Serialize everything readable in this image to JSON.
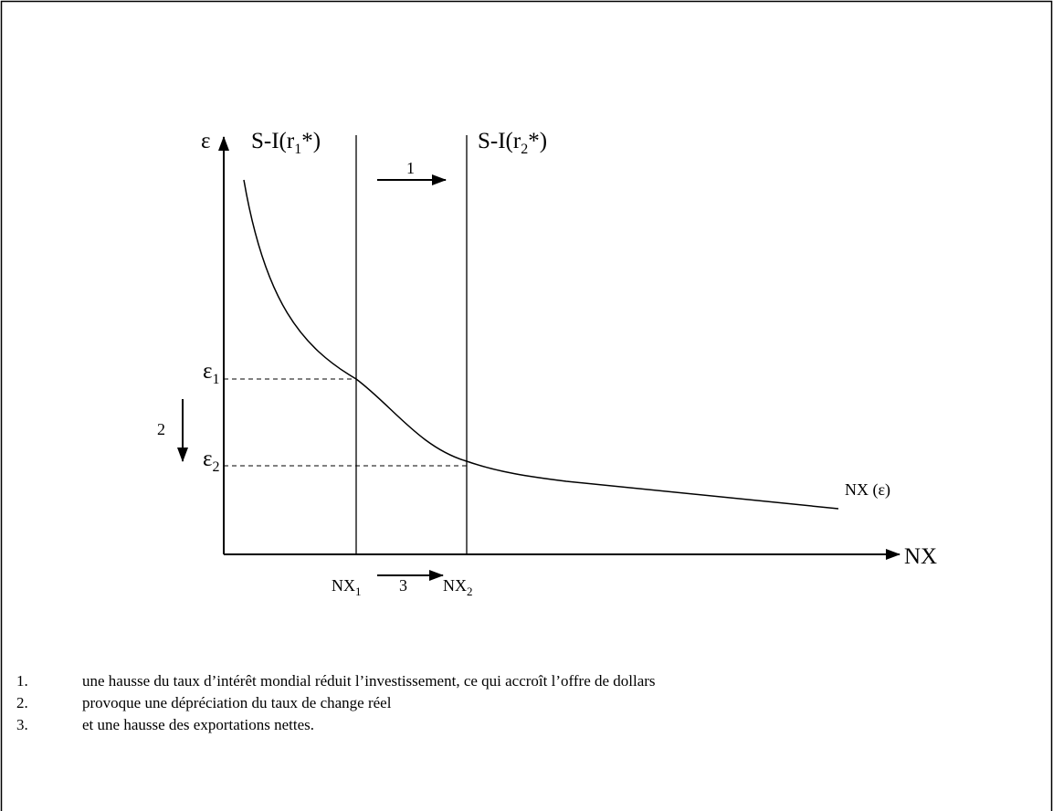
{
  "diagram": {
    "y_axis_label": "ε",
    "x_axis_label": "NX",
    "curve_label": "NX (ε)",
    "line1_label": {
      "main": "S-I(r",
      "sub": "1",
      "tail": "*)"
    },
    "line2_label": {
      "main": "S-I(r",
      "sub": "2",
      "tail": "*)"
    },
    "eps1": {
      "main": "ε",
      "sub": "1"
    },
    "eps2": {
      "main": "ε",
      "sub": "2"
    },
    "nx1": {
      "main": "NX",
      "sub": "1"
    },
    "nx2": {
      "main": "NX",
      "sub": "2"
    },
    "arrow1_label": "1",
    "arrow2_label": "2",
    "arrow3_label": "3"
  },
  "notes": [
    {
      "number": "1.",
      "text": "une hausse du taux d’intérêt mondial réduit l’investissement, ce qui accroît l’offre  de dollars"
    },
    {
      "number": "2.",
      "text": "provoque une dépréciation du taux de change réel"
    },
    {
      "number": "3.",
      "text": "et une hausse des exportations nettes."
    }
  ]
}
